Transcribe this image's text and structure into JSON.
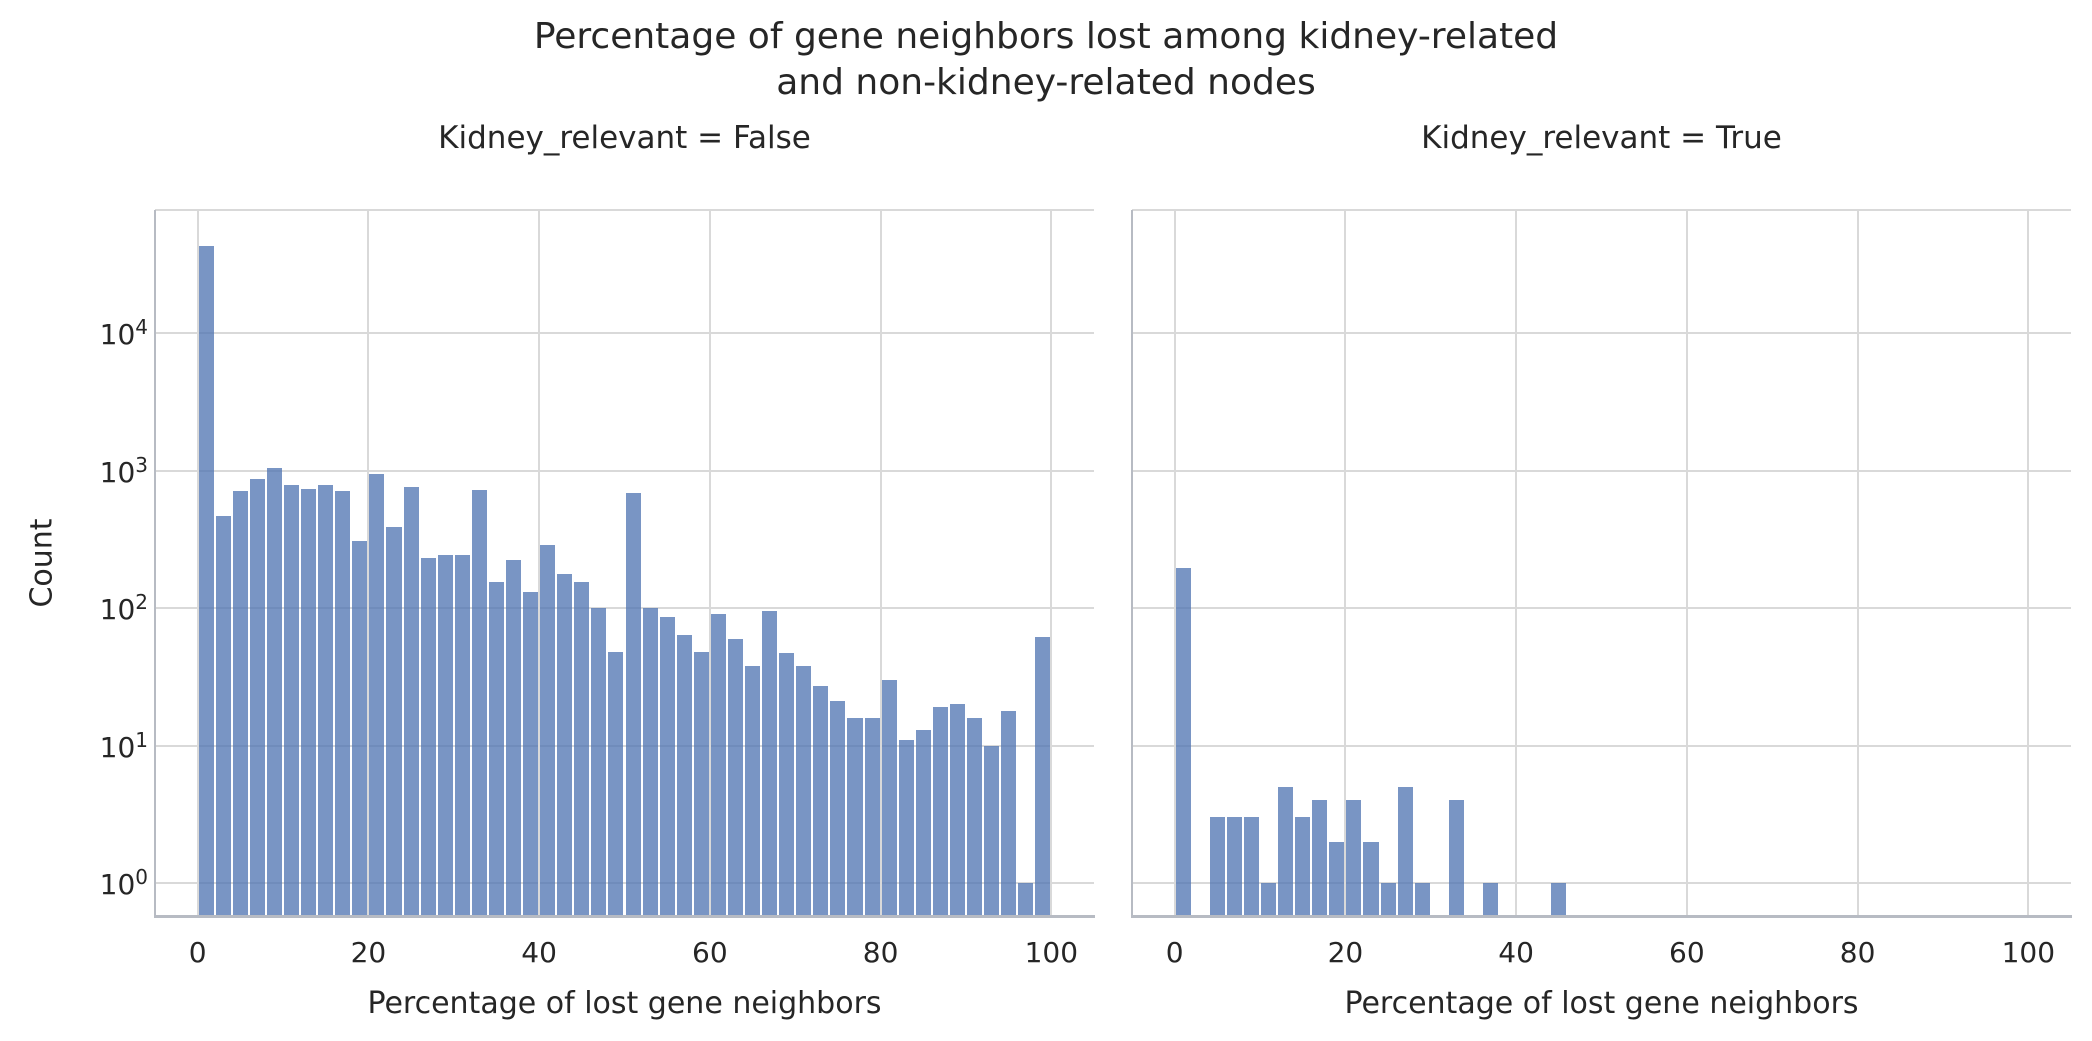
{
  "figure": {
    "title": "Percentage of gene neighbors lost among kidney-related\nand non-kidney-related nodes"
  },
  "colors": {
    "bar_fill": "#4c72b0",
    "bar_alpha": 0.75,
    "bar_edge": "#ffffff",
    "grid": "#d9d9d9",
    "spine": "#b7bbc3",
    "spine_top": "#d9d9d9",
    "text": "#262626",
    "background": "#ffffff"
  },
  "chart_data": [
    {
      "type": "bar",
      "subtype": "histogram",
      "title": "Kidney_relevant = False",
      "xlabel": "Percentage of lost gene neighbors",
      "ylabel": "Count",
      "yscale": "log",
      "grid": true,
      "legend": false,
      "bin_width": 2,
      "bin_starts": [
        0,
        2,
        4,
        6,
        8,
        10,
        12,
        14,
        16,
        18,
        20,
        22,
        24,
        26,
        28,
        30,
        32,
        34,
        36,
        38,
        40,
        42,
        44,
        46,
        48,
        50,
        52,
        54,
        56,
        58,
        60,
        62,
        64,
        66,
        68,
        70,
        72,
        74,
        76,
        78,
        80,
        82,
        84,
        86,
        88,
        90,
        92,
        94,
        96,
        98
      ],
      "values": [
        43000,
        470,
        710,
        870,
        1050,
        790,
        740,
        790,
        710,
        310,
        950,
        390,
        760,
        230,
        245,
        245,
        730,
        155,
        225,
        132,
        290,
        178,
        155,
        100,
        48,
        690,
        100,
        86,
        64,
        48,
        90,
        60,
        38,
        95,
        47,
        38,
        27,
        21,
        16,
        16,
        30,
        11,
        13,
        19,
        20,
        16,
        10,
        18,
        1,
        62
      ],
      "xticks": [
        0,
        20,
        40,
        60,
        80,
        100
      ],
      "ytick_values": [
        1,
        10,
        100,
        1000,
        10000
      ],
      "ytick_base": "10",
      "ytick_exponents": [
        "0",
        "1",
        "2",
        "3",
        "4"
      ],
      "xlim": [
        -5,
        105
      ],
      "ylim": [
        0.585,
        79000
      ],
      "show_ytick_labels": true
    },
    {
      "type": "bar",
      "subtype": "histogram",
      "title": "Kidney_relevant = True",
      "xlabel": "Percentage of lost gene neighbors",
      "ylabel": "Count",
      "yscale": "log",
      "grid": true,
      "legend": false,
      "bin_width": 2,
      "bin_starts": [
        0,
        2,
        4,
        6,
        8,
        10,
        12,
        14,
        16,
        18,
        20,
        22,
        24,
        26,
        28,
        30,
        32,
        34,
        36,
        38,
        40,
        42,
        44,
        46,
        48,
        50,
        52,
        54,
        56,
        58,
        60,
        62,
        64,
        66,
        68,
        70,
        72,
        74,
        76,
        78,
        80,
        82,
        84,
        86,
        88,
        90,
        92,
        94,
        96,
        98
      ],
      "values": [
        197,
        0,
        3,
        3,
        3,
        1,
        5,
        3,
        4,
        2,
        4,
        2,
        1,
        5,
        1,
        0,
        4,
        0,
        1,
        0,
        0,
        0,
        1,
        0,
        0,
        0,
        0,
        0,
        0,
        0,
        0,
        0,
        0,
        0,
        0,
        0,
        0,
        0,
        0,
        0,
        0,
        0,
        0,
        0,
        0,
        0,
        0,
        0,
        0,
        0
      ],
      "xticks": [
        0,
        20,
        40,
        60,
        80,
        100
      ],
      "ytick_values": [
        1,
        10,
        100,
        1000,
        10000
      ],
      "ytick_base": "10",
      "ytick_exponents": [
        "0",
        "1",
        "2",
        "3",
        "4"
      ],
      "xlim": [
        -5,
        105
      ],
      "ylim": [
        0.585,
        79000
      ],
      "show_ytick_labels": false
    }
  ]
}
